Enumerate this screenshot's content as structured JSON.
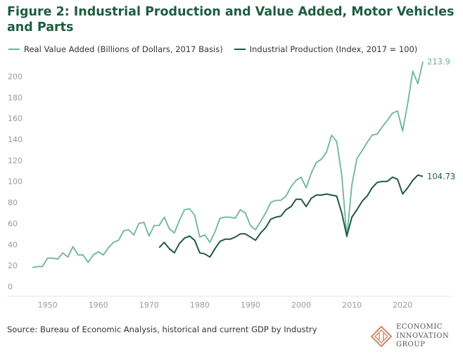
{
  "header": {
    "title": "Figure 2: Industrial Production and Value Added, Motor Vehicles and Parts"
  },
  "footer": {
    "source": "Source: Bureau of Economic Analysis, historical and current GDP by Industry"
  },
  "logo": {
    "lines": [
      "ECONOMIC",
      "INNOVATION",
      "GROUP"
    ],
    "icon": "eig-diamond-logo"
  },
  "colors": {
    "value_added": "#6db598",
    "industrial_production": "#1f5a40",
    "title": "#1e5c42",
    "tick": "#9a9a9a",
    "grid": "#e6e6e6"
  },
  "chart_data": {
    "type": "line",
    "title": "Figure 2: Industrial Production and Value Added, Motor Vehicles and Parts",
    "xlabel": "",
    "ylabel": "",
    "xlim": [
      1947,
      2024
    ],
    "ylim": [
      0,
      215
    ],
    "x_ticks": [
      1950,
      1960,
      1970,
      1980,
      1990,
      2000,
      2010,
      2020
    ],
    "y_ticks": [
      0,
      20,
      40,
      60,
      80,
      100,
      120,
      140,
      160,
      180,
      200
    ],
    "grid": "none",
    "legend_position": "top-left",
    "series": [
      {
        "name": "Real Value Added (Billions of Dollars, 2017 Basis)",
        "color": "#6db598",
        "end_label": "213.9",
        "points": [
          [
            1947,
            18
          ],
          [
            1948,
            19
          ],
          [
            1949,
            19
          ],
          [
            1950,
            27
          ],
          [
            1951,
            27
          ],
          [
            1952,
            26
          ],
          [
            1953,
            32
          ],
          [
            1954,
            28
          ],
          [
            1955,
            38
          ],
          [
            1956,
            30
          ],
          [
            1957,
            30
          ],
          [
            1958,
            23
          ],
          [
            1959,
            30
          ],
          [
            1960,
            33
          ],
          [
            1961,
            30
          ],
          [
            1962,
            37
          ],
          [
            1963,
            42
          ],
          [
            1964,
            44
          ],
          [
            1965,
            53
          ],
          [
            1966,
            54
          ],
          [
            1967,
            49
          ],
          [
            1968,
            60
          ],
          [
            1969,
            61
          ],
          [
            1970,
            48
          ],
          [
            1971,
            58
          ],
          [
            1972,
            58
          ],
          [
            1973,
            66
          ],
          [
            1974,
            55
          ],
          [
            1975,
            51
          ],
          [
            1976,
            63
          ],
          [
            1977,
            73
          ],
          [
            1978,
            74
          ],
          [
            1979,
            68
          ],
          [
            1980,
            47
          ],
          [
            1981,
            49
          ],
          [
            1982,
            42
          ],
          [
            1983,
            52
          ],
          [
            1984,
            65
          ],
          [
            1985,
            66
          ],
          [
            1986,
            66
          ],
          [
            1987,
            65
          ],
          [
            1988,
            73
          ],
          [
            1989,
            70
          ],
          [
            1990,
            58
          ],
          [
            1991,
            54
          ],
          [
            1992,
            62
          ],
          [
            1993,
            70
          ],
          [
            1994,
            80
          ],
          [
            1995,
            82
          ],
          [
            1996,
            82
          ],
          [
            1997,
            86
          ],
          [
            1998,
            95
          ],
          [
            1999,
            101
          ],
          [
            2000,
            104
          ],
          [
            2001,
            94
          ],
          [
            2002,
            108
          ],
          [
            2003,
            118
          ],
          [
            2004,
            121
          ],
          [
            2005,
            128
          ],
          [
            2006,
            144
          ],
          [
            2007,
            138
          ],
          [
            2008,
            106
          ],
          [
            2009,
            47
          ],
          [
            2010,
            97
          ],
          [
            2011,
            122
          ],
          [
            2012,
            129
          ],
          [
            2013,
            137
          ],
          [
            2014,
            144
          ],
          [
            2015,
            145
          ],
          [
            2016,
            152
          ],
          [
            2017,
            158
          ],
          [
            2018,
            165
          ],
          [
            2019,
            167
          ],
          [
            2020,
            148
          ],
          [
            2021,
            174
          ],
          [
            2022,
            205
          ],
          [
            2023,
            193
          ],
          [
            2024,
            213.9
          ]
        ]
      },
      {
        "name": "Industrial Production (Index, 2017 = 100)",
        "color": "#1f5a40",
        "end_label": "104.73",
        "points": [
          [
            1972,
            37
          ],
          [
            1973,
            42
          ],
          [
            1974,
            36
          ],
          [
            1975,
            32
          ],
          [
            1976,
            41
          ],
          [
            1977,
            46
          ],
          [
            1978,
            48
          ],
          [
            1979,
            44
          ],
          [
            1980,
            32
          ],
          [
            1981,
            31
          ],
          [
            1982,
            28
          ],
          [
            1983,
            36
          ],
          [
            1984,
            43
          ],
          [
            1985,
            45
          ],
          [
            1986,
            45
          ],
          [
            1987,
            47
          ],
          [
            1988,
            50
          ],
          [
            1989,
            50
          ],
          [
            1990,
            47
          ],
          [
            1991,
            44
          ],
          [
            1992,
            51
          ],
          [
            1993,
            56
          ],
          [
            1994,
            64
          ],
          [
            1995,
            66
          ],
          [
            1996,
            67
          ],
          [
            1997,
            73
          ],
          [
            1998,
            76
          ],
          [
            1999,
            83
          ],
          [
            2000,
            83
          ],
          [
            2001,
            76
          ],
          [
            2002,
            84
          ],
          [
            2003,
            87
          ],
          [
            2004,
            87
          ],
          [
            2005,
            88
          ],
          [
            2006,
            87
          ],
          [
            2007,
            86
          ],
          [
            2008,
            70
          ],
          [
            2009,
            48
          ],
          [
            2010,
            66
          ],
          [
            2011,
            73
          ],
          [
            2012,
            81
          ],
          [
            2013,
            86
          ],
          [
            2014,
            94
          ],
          [
            2015,
            99
          ],
          [
            2016,
            100
          ],
          [
            2017,
            100
          ],
          [
            2018,
            104
          ],
          [
            2019,
            102
          ],
          [
            2020,
            88
          ],
          [
            2021,
            94
          ],
          [
            2022,
            101
          ],
          [
            2023,
            106
          ],
          [
            2024,
            104.73
          ]
        ]
      }
    ]
  }
}
